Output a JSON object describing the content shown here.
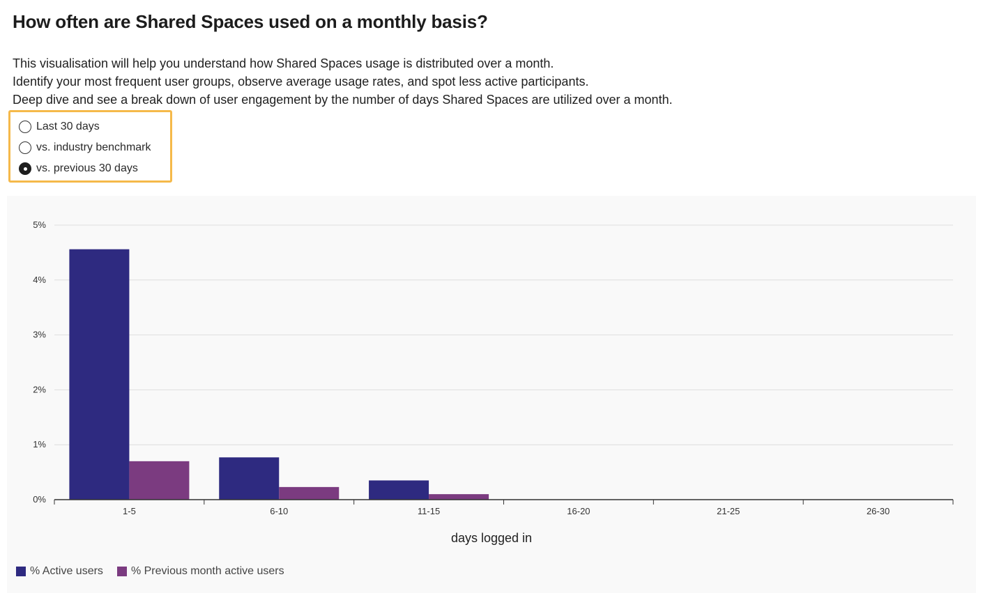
{
  "header": {
    "title": "How often are Shared Spaces used on a monthly basis?",
    "description": [
      "This visualisation will help you understand how Shared Spaces usage is distributed over a month.",
      "Identify your most frequent user groups, observe average usage rates, and spot less active participants.",
      "Deep dive and see a break down of user engagement by the number of days Shared Spaces are utilized over a month."
    ]
  },
  "comparison": {
    "options": [
      {
        "label": "Last 30 days",
        "checked": false
      },
      {
        "label": "vs. industry benchmark",
        "checked": false
      },
      {
        "label": "vs. previous 30 days",
        "checked": true
      }
    ],
    "highlight_color": "#f5b94a"
  },
  "chart_data": {
    "type": "bar",
    "title": "",
    "xlabel": "days logged in",
    "ylabel": "",
    "categories": [
      "1-5",
      "6-10",
      "11-15",
      "16-20",
      "21-25",
      "26-30"
    ],
    "ylim": [
      0,
      5
    ],
    "yticks": [
      0,
      1,
      2,
      3,
      4,
      5
    ],
    "ytick_labels": [
      "0%",
      "1%",
      "2%",
      "3%",
      "4%",
      "5%"
    ],
    "grid": true,
    "legend_position": "bottom-left",
    "series": [
      {
        "name": "% Active users",
        "color": "#2e2a80",
        "values": [
          4.56,
          0.77,
          0.35,
          0,
          0,
          0
        ]
      },
      {
        "name": "% Previous month active users",
        "color": "#7b3b80",
        "values": [
          0.7,
          0.23,
          0.1,
          0,
          0,
          0
        ]
      }
    ]
  }
}
